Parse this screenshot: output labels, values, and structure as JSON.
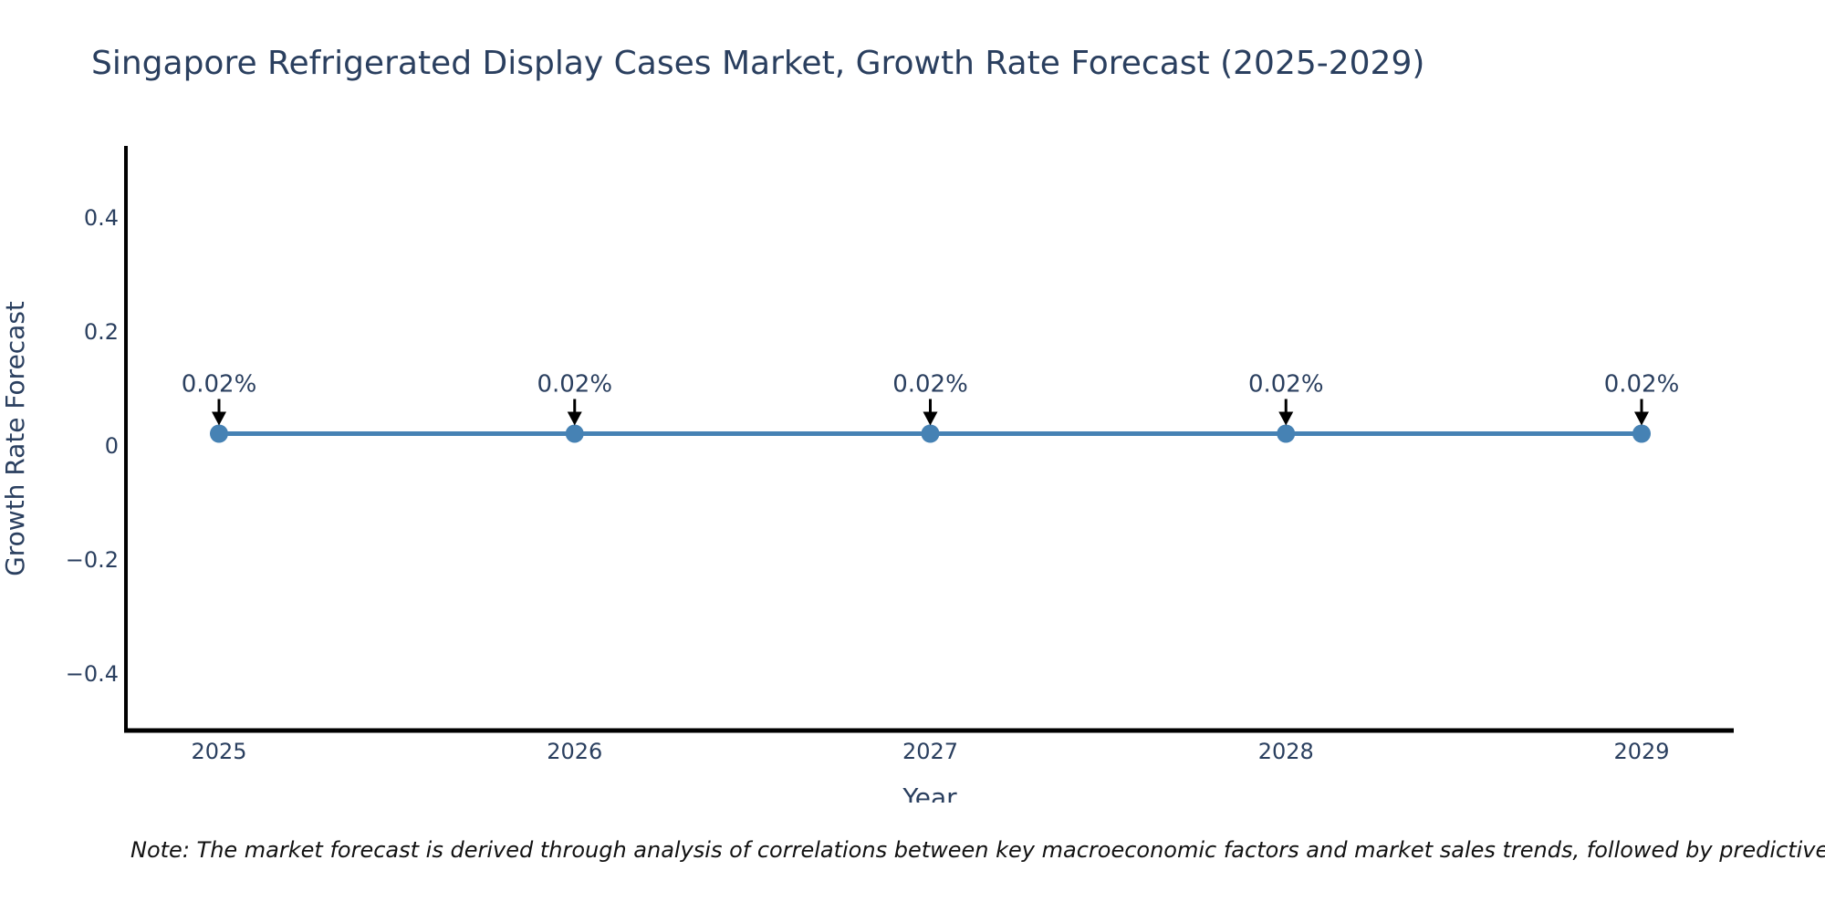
{
  "chart": {
    "title": "Singapore Refrigerated Display Cases Market, Growth Rate Forecast (2025-2029)",
    "xaxis": {
      "title": "Year",
      "tick_labels": [
        "2025",
        "2026",
        "2027",
        "2028",
        "2029"
      ]
    },
    "yaxis": {
      "title": "Growth Rate Forecast",
      "tick_labels": [
        "0.4",
        "0.2",
        "0",
        "−0.2",
        "−0.4"
      ],
      "tick_values": [
        0.4,
        0.2,
        0,
        -0.2,
        -0.4
      ]
    }
  },
  "chart_data": {
    "type": "line",
    "x": [
      2025,
      2026,
      2027,
      2028,
      2029
    ],
    "categories": [
      "2025",
      "2026",
      "2027",
      "2028",
      "2029"
    ],
    "values": [
      0.02,
      0.02,
      0.02,
      0.02,
      0.02
    ],
    "point_labels": [
      "0.02%",
      "0.02%",
      "0.02%",
      "0.02%",
      "0.02%"
    ],
    "title": "Singapore Refrigerated Display Cases Market, Growth Rate Forecast (2025-2029)",
    "xlabel": "Year",
    "ylabel": "Growth Rate Forecast",
    "ylim": [
      -0.5,
      0.53
    ],
    "grid": false,
    "legend": false,
    "colors": {
      "line": "#4682b4",
      "marker": "#4682b4",
      "axis": "#000000",
      "annotation_arrow": "#000000",
      "text": "#2a3f5f"
    }
  },
  "note": {
    "text": "Note: The market forecast is derived through analysis of correlations between key macroeconomic factors and market sales trends, followed by predictive modeling to project future sa"
  }
}
